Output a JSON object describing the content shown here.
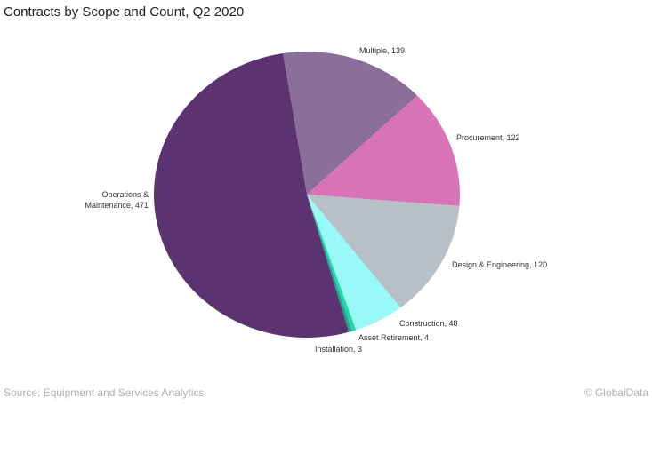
{
  "chart_data": {
    "type": "pie",
    "title": "Contracts by Scope and Count, Q2 2020",
    "slices": [
      {
        "label": "Multiple",
        "value": 139,
        "color": "#8a6f98",
        "text": "Multiple, 139"
      },
      {
        "label": "Procurement",
        "value": 122,
        "color": "#d873b8",
        "text": "Procurement, 122"
      },
      {
        "label": "Design & Engineering",
        "value": 120,
        "color": "#b8bfc7",
        "text": "Design & Engineering, 120"
      },
      {
        "label": "Construction",
        "value": 48,
        "color": "#99f8f8",
        "text": "Construction, 48"
      },
      {
        "label": "Asset Retirement",
        "value": 4,
        "color": "#22d6a6",
        "text": "Asset Retirement, 4"
      },
      {
        "label": "Installation",
        "value": 3,
        "color": "#1aa88a",
        "text": "Installation, 3"
      },
      {
        "label": "Operations & Maintenance",
        "value": 471,
        "color": "#5a3370",
        "text": [
          "Operations &",
          "Maintenance, 471"
        ]
      }
    ],
    "legend": "none"
  },
  "footer": {
    "source": "Source: Equipment and Services Analytics",
    "credit": "© GlobalData"
  }
}
